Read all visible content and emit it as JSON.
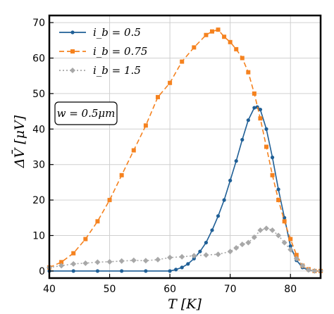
{
  "chart_data": {
    "type": "line",
    "xlabel": "T [K]",
    "ylabel": "ΔV̄ [μV]",
    "xlim": [
      40,
      85
    ],
    "ylim": [
      -2,
      72
    ],
    "xticks": [
      "40",
      "50",
      "60",
      "70",
      "80"
    ],
    "yticks": [
      "0",
      "10",
      "20",
      "30",
      "40",
      "50",
      "60",
      "70"
    ],
    "grid": true,
    "legend_position": "top-left",
    "annotation": "w = 0.5μm",
    "series": [
      {
        "name": "i_b = 0.5",
        "legend_label": "i_b = 0.5",
        "color": "#1f5f96",
        "linestyle": "solid",
        "marker": "circle",
        "x": [
          40,
          44,
          48,
          52,
          56,
          60,
          61,
          62,
          63,
          64,
          65,
          66,
          67,
          68,
          69,
          70,
          71,
          72,
          73,
          74,
          74.5,
          75,
          76,
          77,
          78,
          79,
          80,
          81,
          82,
          83,
          84,
          85
        ],
        "y": [
          0,
          0,
          0,
          0,
          0,
          0,
          0.4,
          1,
          2,
          3.5,
          5.5,
          8,
          11.5,
          15.5,
          20,
          25.5,
          31,
          37,
          42.5,
          46,
          46.2,
          45.5,
          40,
          32,
          23,
          15,
          7,
          3,
          1,
          0.2,
          0,
          0
        ]
      },
      {
        "name": "i_b = 0.75",
        "legend_label": "i_b = 0.75",
        "color": "#f5821f",
        "linestyle": "dashed",
        "marker": "square",
        "x": [
          40,
          42,
          44,
          46,
          48,
          50,
          52,
          54,
          56,
          58,
          60,
          62,
          64,
          66,
          67,
          68,
          69,
          70,
          71,
          72,
          73,
          74,
          75,
          76,
          77,
          78,
          79,
          80,
          81,
          82,
          83,
          84,
          85
        ],
        "y": [
          1,
          2.5,
          5,
          9,
          14,
          20,
          27,
          34,
          41,
          49,
          53,
          59,
          63,
          66.5,
          67.5,
          68,
          66,
          64.5,
          62.5,
          60,
          56,
          50,
          43,
          35,
          27,
          20,
          14,
          9,
          4.5,
          1.5,
          0.5,
          0,
          0
        ]
      },
      {
        "name": "i_b = 1.5",
        "legend_label": "i_b = 1.5",
        "color": "#a8a8a8",
        "linestyle": "dotted",
        "marker": "diamond",
        "x": [
          40,
          42,
          44,
          46,
          48,
          50,
          52,
          54,
          56,
          58,
          60,
          62,
          64,
          66,
          68,
          70,
          71,
          72,
          73,
          74,
          75,
          76,
          77,
          78,
          79,
          80,
          81,
          82,
          83,
          84,
          85
        ],
        "y": [
          1,
          1.5,
          2,
          2.2,
          2.5,
          2.6,
          2.8,
          3,
          2.9,
          3.2,
          3.8,
          4,
          4.3,
          4.5,
          4.7,
          5.5,
          6.5,
          7.5,
          8,
          9.5,
          11.5,
          12,
          11.5,
          10,
          8,
          6,
          3.5,
          1.5,
          0.3,
          0,
          0
        ]
      }
    ]
  }
}
